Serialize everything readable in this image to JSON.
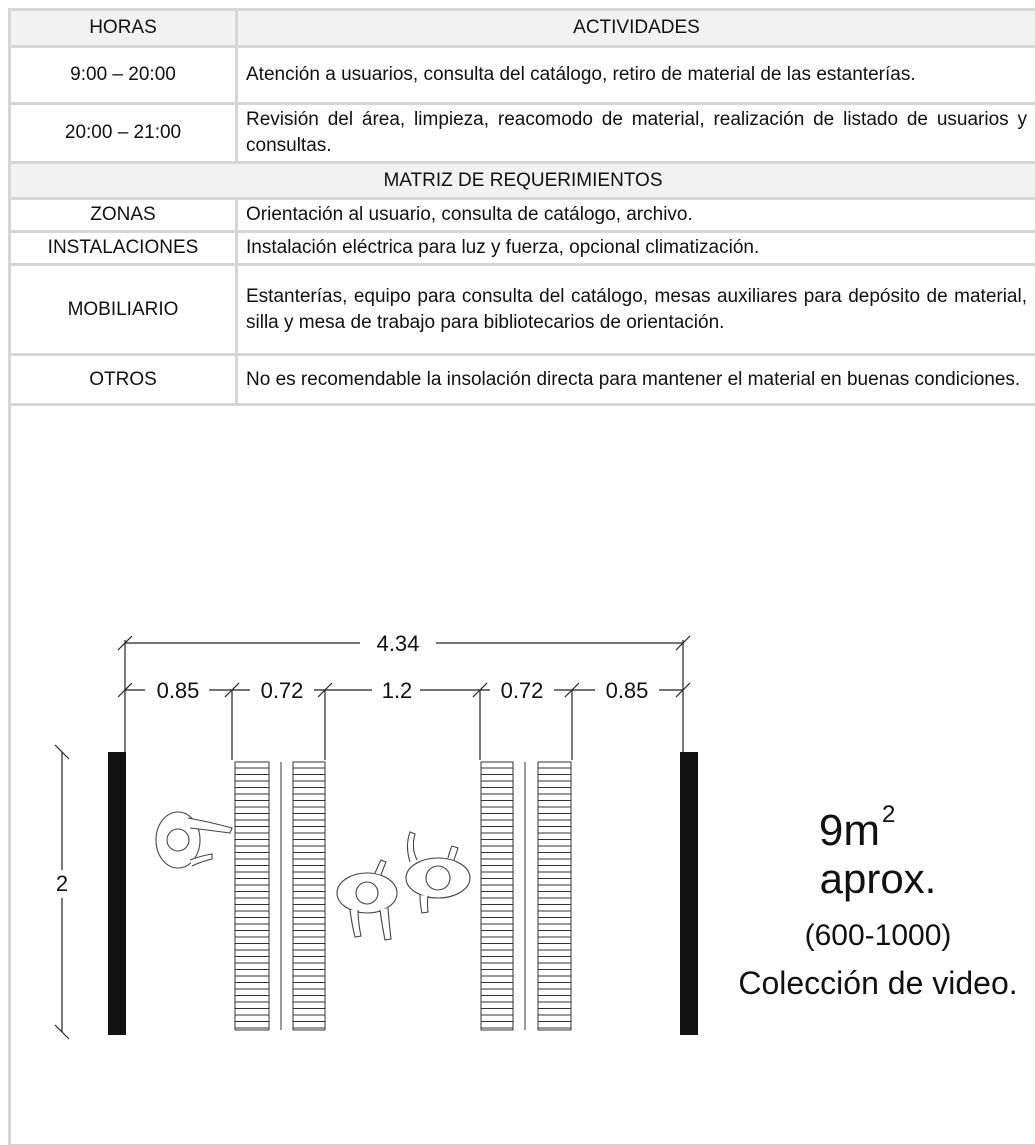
{
  "schedule": {
    "header": [
      "HORAS",
      "ACTIVIDADES"
    ],
    "rows": [
      [
        "9:00 – 20:00",
        "Atención a usuarios, consulta del catálogo, retiro de material de las estanterías."
      ],
      [
        "20:00 – 21:00",
        "Revisión del área, limpieza, reacomodo de material, realización de listado de usuarios y consultas."
      ]
    ]
  },
  "matrix": {
    "title": "MATRIZ DE REQUERIMIENTOS",
    "rows": [
      [
        "ZONAS",
        "Orientación al usuario, consulta de catálogo, archivo."
      ],
      [
        "INSTALACIONES",
        "Instalación eléctrica para luz y fuerza, opcional  climatización."
      ],
      [
        "MOBILIARIO",
        "Estanterías, equipo para consulta del catálogo, mesas auxiliares para depósito de material, silla y mesa de trabajo para bibliotecarios de orientación."
      ],
      [
        "OTROS",
        "No es recomendable la insolación directa para mantener el material en buenas condiciones."
      ]
    ]
  },
  "diagram": {
    "total_width": "4.34",
    "widths": [
      "0.85",
      "0.72",
      "1.2",
      "0.72",
      "0.85"
    ],
    "depth": "2",
    "area": "9m",
    "area_exponent": "2",
    "approx": "aprox.",
    "range": "(600-1000)",
    "collection": "Colección de video."
  }
}
